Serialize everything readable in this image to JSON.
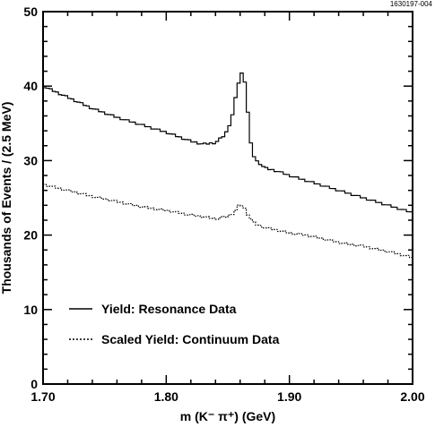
{
  "figure_id": "1630197-004",
  "chart_data": {
    "type": "line",
    "style": "step histogram",
    "xlabel": "m (K⁻ π⁺) (GeV)",
    "ylabel": "Thousands of Events / (2.5 MeV)",
    "xlim": [
      1.7,
      2.0
    ],
    "ylim": [
      0,
      50
    ],
    "x_ticks": [
      1.7,
      1.8,
      1.9,
      2.0
    ],
    "x_tick_labels": [
      "1.70",
      "1.80",
      "1.90",
      "2.00"
    ],
    "y_ticks": [
      0,
      10,
      20,
      30,
      40,
      50
    ],
    "y_tick_labels": [
      "0",
      "10",
      "20",
      "30",
      "40",
      "50"
    ],
    "legend_position": "bottom-left",
    "series": [
      {
        "name": "Yield: Resonance Data",
        "line": "solid",
        "x": [
          1.7,
          1.72,
          1.74,
          1.76,
          1.78,
          1.8,
          1.82,
          1.83,
          1.84,
          1.848,
          1.853,
          1.857,
          1.86,
          1.862,
          1.864,
          1.866,
          1.868,
          1.87,
          1.873,
          1.877,
          1.88,
          1.89,
          1.9,
          1.92,
          1.94,
          1.96,
          1.98,
          2.0
        ],
        "values": [
          40.0,
          38.5,
          37.0,
          35.8,
          34.8,
          33.8,
          32.6,
          32.2,
          32.4,
          33.5,
          35.5,
          39.0,
          41.5,
          41.8,
          40.5,
          37.0,
          33.0,
          31.0,
          30.0,
          29.5,
          29.0,
          28.6,
          28.0,
          27.0,
          26.0,
          25.0,
          24.0,
          23.0
        ]
      },
      {
        "name": "Scaled Yield: Continuum Data",
        "line": "dotted",
        "x": [
          1.7,
          1.72,
          1.74,
          1.76,
          1.78,
          1.8,
          1.82,
          1.84,
          1.85,
          1.855,
          1.86,
          1.864,
          1.868,
          1.872,
          1.88,
          1.9,
          1.92,
          1.94,
          1.96,
          1.98,
          2.0
        ],
        "values": [
          26.8,
          26.0,
          25.2,
          24.5,
          23.8,
          23.3,
          22.7,
          22.2,
          22.5,
          23.0,
          24.2,
          23.5,
          22.3,
          21.5,
          21.0,
          20.3,
          19.8,
          19.0,
          18.5,
          17.8,
          17.0
        ]
      }
    ]
  }
}
